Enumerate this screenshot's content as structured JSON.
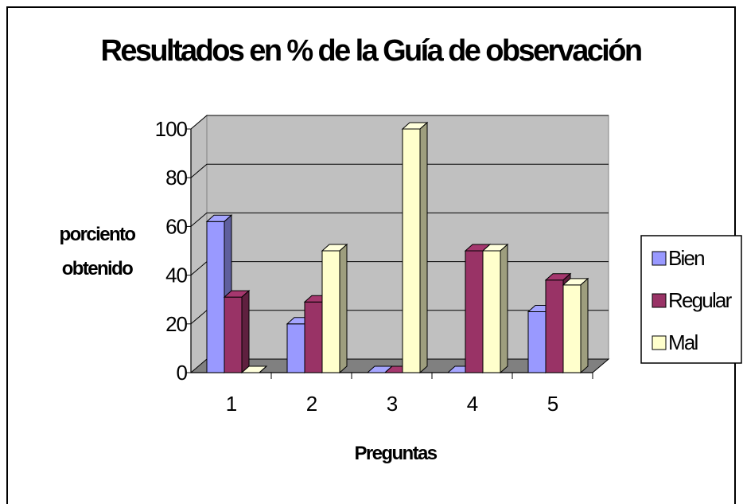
{
  "chart_data": {
    "type": "bar",
    "title": "Resultados en % de la Guía de observación",
    "xlabel": "Preguntas",
    "ylabel_lines": [
      "porciento",
      "obtenido"
    ],
    "categories": [
      "1",
      "2",
      "3",
      "4",
      "5"
    ],
    "series": [
      {
        "name": "Bien",
        "values": [
          62,
          20,
          0,
          0,
          25
        ]
      },
      {
        "name": "Regular",
        "values": [
          31,
          29,
          0,
          50,
          38
        ]
      },
      {
        "name": "Mal",
        "values": [
          0,
          50,
          100,
          50,
          36
        ]
      }
    ],
    "ylim": [
      0,
      100
    ],
    "yticks": [
      "0",
      "20",
      "40",
      "60",
      "80",
      "100"
    ],
    "grid": true,
    "legend_position": "right",
    "chart_style": "3d-clustered-column",
    "colors": {
      "Bien": "#9999ff",
      "Regular": "#993366",
      "Mal": "#ffffcc",
      "plot_wall": "#c0c0c0",
      "plot_floor": "#808080"
    }
  }
}
